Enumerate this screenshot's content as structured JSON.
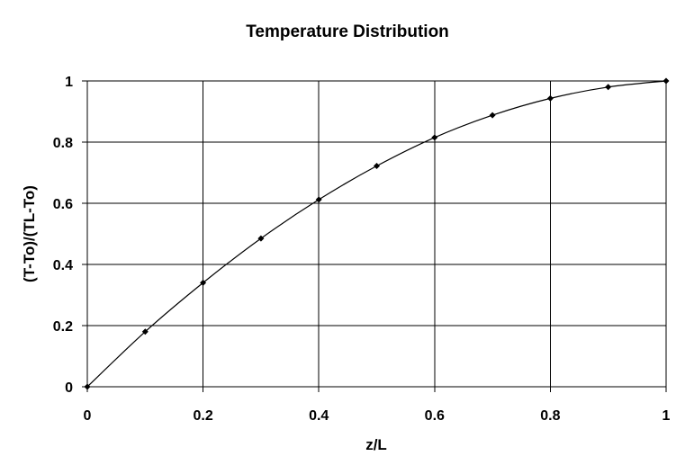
{
  "chart_data": {
    "type": "line",
    "title": "Temperature Distribution",
    "xlabel": "z/L",
    "ylabel": "(T-To)/(TL-To)",
    "xlim": [
      0,
      1
    ],
    "ylim": [
      0,
      1
    ],
    "x_ticks": [
      0,
      0.2,
      0.4,
      0.6,
      0.8,
      1
    ],
    "y_ticks": [
      0,
      0.2,
      0.4,
      0.6,
      0.8,
      1
    ],
    "x_tick_labels": [
      "0",
      "0.2",
      "0.4",
      "0.6",
      "0.8",
      "1"
    ],
    "y_tick_labels": [
      "0",
      "0.2",
      "0.4",
      "0.6",
      "0.8",
      "1"
    ],
    "grid": true,
    "legend": "none",
    "series": [
      {
        "x": [
          0,
          0.1,
          0.2,
          0.3,
          0.4,
          0.5,
          0.6,
          0.7,
          0.8,
          0.9,
          1.0
        ],
        "y": [
          0,
          0.18,
          0.34,
          0.485,
          0.612,
          0.722,
          0.815,
          0.888,
          0.943,
          0.98,
          1.0
        ],
        "color": "#000000",
        "marker": "diamond"
      }
    ]
  }
}
